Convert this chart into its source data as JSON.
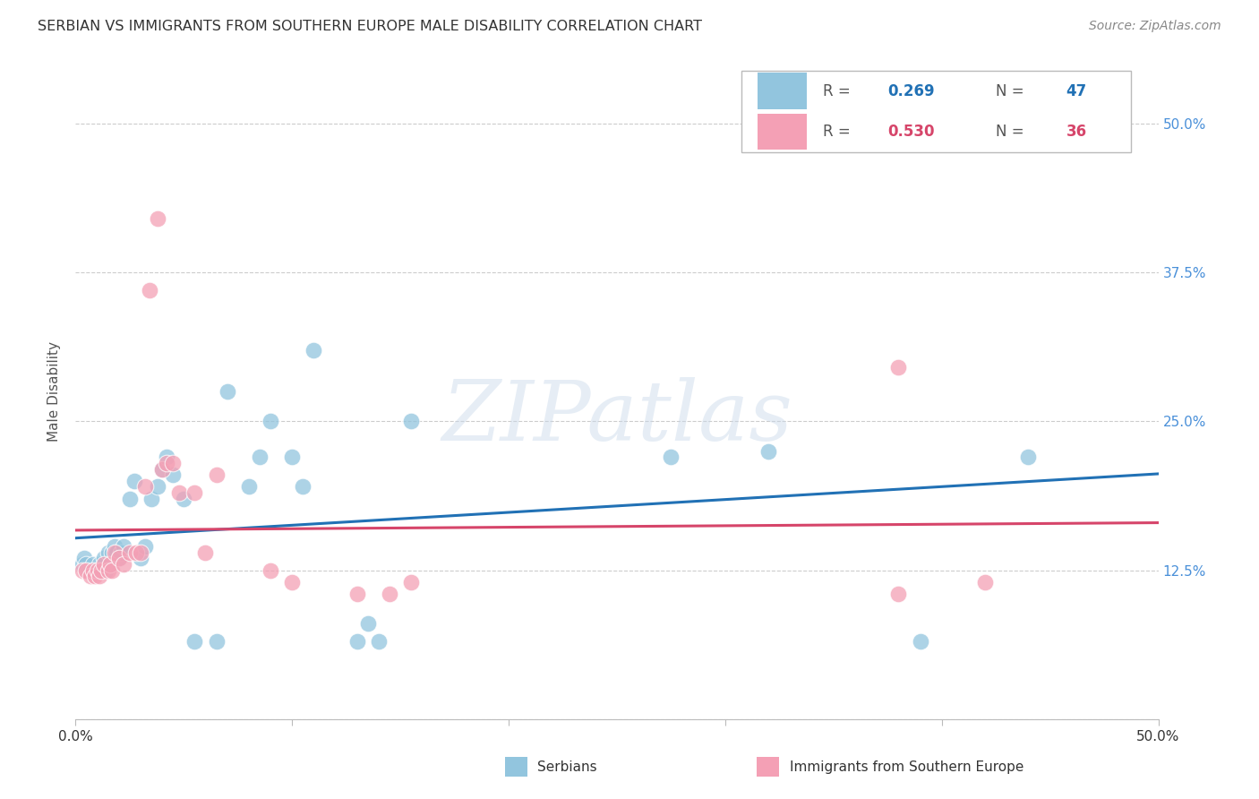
{
  "title": "SERBIAN VS IMMIGRANTS FROM SOUTHERN EUROPE MALE DISABILITY CORRELATION CHART",
  "source": "Source: ZipAtlas.com",
  "ylabel": "Male Disability",
  "xlim": [
    0.0,
    0.5
  ],
  "ylim": [
    0.0,
    0.55
  ],
  "ytick_positions": [
    0.0,
    0.125,
    0.25,
    0.375,
    0.5
  ],
  "ytick_labels": [
    "",
    "12.5%",
    "25.0%",
    "37.5%",
    "50.0%"
  ],
  "xtick_positions": [
    0.0,
    0.1,
    0.2,
    0.3,
    0.4,
    0.5
  ],
  "xtick_labels": [
    "0.0%",
    "",
    "",
    "",
    "",
    "50.0%"
  ],
  "series1_label": "Serbians",
  "series2_label": "Immigrants from Southern Europe",
  "series1_R": "0.269",
  "series1_N": "47",
  "series2_R": "0.530",
  "series2_N": "36",
  "series1_color": "#92c5de",
  "series2_color": "#f4a0b5",
  "series1_line_color": "#2171b5",
  "series2_line_color": "#d6456a",
  "series1_x": [
    0.003,
    0.004,
    0.005,
    0.006,
    0.007,
    0.008,
    0.009,
    0.01,
    0.011,
    0.012,
    0.013,
    0.014,
    0.015,
    0.016,
    0.017,
    0.018,
    0.019,
    0.02,
    0.021,
    0.022,
    0.025,
    0.027,
    0.03,
    0.032,
    0.035,
    0.038,
    0.04,
    0.042,
    0.045,
    0.05,
    0.055,
    0.065,
    0.07,
    0.275,
    0.08,
    0.085,
    0.09,
    0.1,
    0.105,
    0.11,
    0.13,
    0.135,
    0.14,
    0.155,
    0.32,
    0.39,
    0.44
  ],
  "series1_y": [
    0.13,
    0.135,
    0.13,
    0.125,
    0.125,
    0.13,
    0.125,
    0.125,
    0.13,
    0.125,
    0.135,
    0.125,
    0.14,
    0.13,
    0.14,
    0.145,
    0.14,
    0.135,
    0.14,
    0.145,
    0.185,
    0.2,
    0.135,
    0.145,
    0.185,
    0.195,
    0.21,
    0.22,
    0.205,
    0.185,
    0.065,
    0.065,
    0.275,
    0.22,
    0.195,
    0.22,
    0.25,
    0.22,
    0.195,
    0.31,
    0.065,
    0.08,
    0.065,
    0.25,
    0.225,
    0.065,
    0.22
  ],
  "series2_x": [
    0.003,
    0.005,
    0.007,
    0.008,
    0.009,
    0.01,
    0.011,
    0.012,
    0.013,
    0.015,
    0.016,
    0.017,
    0.018,
    0.02,
    0.022,
    0.025,
    0.028,
    0.03,
    0.032,
    0.034,
    0.038,
    0.04,
    0.042,
    0.045,
    0.048,
    0.055,
    0.06,
    0.065,
    0.145,
    0.38,
    0.09,
    0.1,
    0.13,
    0.155,
    0.38,
    0.42
  ],
  "series2_y": [
    0.125,
    0.125,
    0.12,
    0.125,
    0.12,
    0.125,
    0.12,
    0.125,
    0.13,
    0.125,
    0.13,
    0.125,
    0.14,
    0.135,
    0.13,
    0.14,
    0.14,
    0.14,
    0.195,
    0.36,
    0.42,
    0.21,
    0.215,
    0.215,
    0.19,
    0.19,
    0.14,
    0.205,
    0.105,
    0.295,
    0.125,
    0.115,
    0.105,
    0.115,
    0.105,
    0.115
  ],
  "watermark": "ZIPatlas",
  "background_color": "#ffffff",
  "grid_color": "#cccccc",
  "title_color": "#333333",
  "axis_label_color": "#555555",
  "ytick_color": "#4a90d9",
  "xtick_color": "#333333"
}
